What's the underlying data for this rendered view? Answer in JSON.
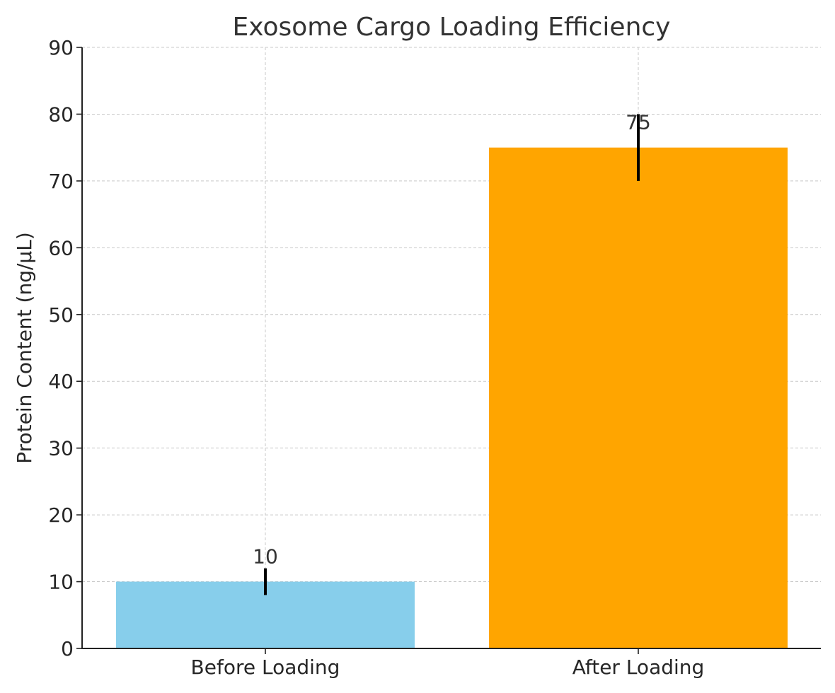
{
  "chart_data": {
    "type": "bar",
    "title": "Exosome Cargo Loading Efficiency",
    "xlabel": "",
    "ylabel": "Protein Content (ng/µL)",
    "categories": [
      "Before Loading",
      "After Loading"
    ],
    "values": [
      10,
      75
    ],
    "errors": [
      2,
      5
    ],
    "value_labels": [
      "10",
      "75"
    ],
    "colors": [
      "#87ceeb",
      "#ffa500"
    ],
    "ylim": [
      0,
      90
    ],
    "yticks": [
      0,
      10,
      20,
      30,
      40,
      50,
      60,
      70,
      80,
      90
    ],
    "ytick_labels": [
      "0",
      "10",
      "20",
      "30",
      "40",
      "50",
      "60",
      "70",
      "80",
      "90"
    ],
    "grid": true,
    "legend": "none"
  }
}
